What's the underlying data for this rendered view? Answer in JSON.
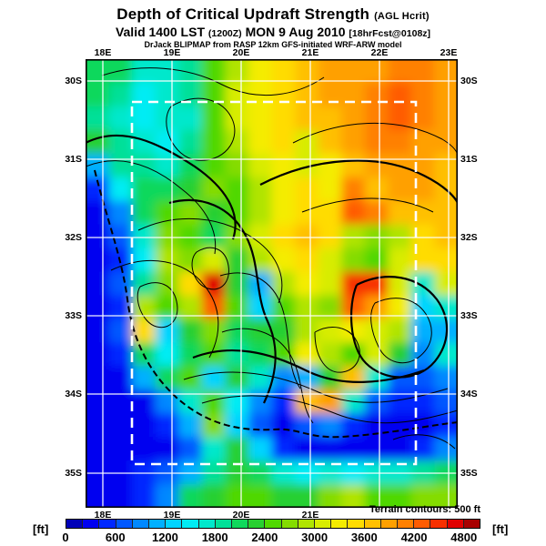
{
  "title": {
    "main": "Depth of Critical Updraft Strength",
    "unit_note": "(AGL Hcrit)"
  },
  "subtitle": {
    "valid": "Valid 1400 LST",
    "zulu": "(1200Z)",
    "date": "MON 9 Aug 2010",
    "fcst": "[18hrFcst@0108z]"
  },
  "model_line": "DrJack BLIPMAP from RASP 12km GFS-initiated WRF-ARW model",
  "axes": {
    "top": [
      "18E",
      "19E",
      "20E",
      "21E",
      "22E",
      "23E"
    ],
    "bottom": [
      "18E",
      "19E",
      "20E",
      "21E"
    ],
    "left": [
      "30S",
      "31S",
      "32S",
      "33S",
      "34S",
      "35S"
    ],
    "right": [
      "30S",
      "31S",
      "32S",
      "33S",
      "34S",
      "35S"
    ]
  },
  "terrain_note": "Terrain contours: 500 ft",
  "colorbar": {
    "unit_left": "[ft]",
    "unit_right": "[ft]",
    "ticks": [
      "0",
      "600",
      "1200",
      "1800",
      "2400",
      "3000",
      "3600",
      "4200",
      "4800"
    ],
    "cell_step_ft": 200,
    "colors": [
      "#0000b8",
      "#0000f0",
      "#0028ff",
      "#0058ff",
      "#0088ff",
      "#00b0ff",
      "#00d4ff",
      "#00ecf4",
      "#00e8cc",
      "#00e098",
      "#10d85c",
      "#28d030",
      "#50d800",
      "#84dc00",
      "#b0e400",
      "#d8ec00",
      "#f4ec00",
      "#ffdc00",
      "#ffc000",
      "#ffa000",
      "#ff8000",
      "#ff5c00",
      "#f83000",
      "#e00000",
      "#a80000"
    ]
  },
  "chart_data": {
    "type": "heatmap",
    "rendering": "filled contour map with terrain contour overlay",
    "title": "Depth of Critical Updraft Strength (AGL Hcrit)",
    "units": "ft",
    "scale_min": 0,
    "scale_max": 4800,
    "scale_tick_step": 600,
    "lon_ticks": [
      "18E",
      "19E",
      "20E",
      "21E",
      "22E",
      "23E"
    ],
    "lat_ticks": [
      "30S",
      "31S",
      "32S",
      "33S",
      "34S",
      "35S"
    ],
    "terrain_contour_interval_ft": 500,
    "overlays": [
      "white lat/lon graticule",
      "white dashed inner nested-domain box",
      "dashed coastline",
      "black terrain contours"
    ],
    "grid_note": "approximate field values in ft, 19 rows (N to S, 30S-35S) x 16 cols (W to E, 18E-23E)",
    "grid": [
      [
        2000,
        2000,
        1600,
        1700,
        1800,
        2400,
        2800,
        3200,
        3400,
        3600,
        3800,
        3800,
        3800,
        4000,
        4000,
        3800
      ],
      [
        2000,
        1800,
        1500,
        1700,
        1800,
        2400,
        3000,
        3200,
        3400,
        3600,
        3800,
        3800,
        4000,
        4200,
        4000,
        3800
      ],
      [
        1800,
        1600,
        1500,
        1700,
        1600,
        2400,
        3000,
        3200,
        3400,
        3600,
        3600,
        3800,
        4000,
        4200,
        4000,
        3800
      ],
      [
        2200,
        1800,
        1700,
        1500,
        1800,
        2400,
        2800,
        3200,
        3400,
        3000,
        3600,
        3800,
        4000,
        4000,
        3800,
        3800
      ],
      [
        1000,
        1800,
        1800,
        1600,
        2000,
        2400,
        2600,
        3000,
        3200,
        3000,
        3200,
        3600,
        3800,
        3800,
        3800,
        3600
      ],
      [
        400,
        1400,
        2000,
        2000,
        2200,
        2600,
        2400,
        2800,
        3200,
        3400,
        3200,
        4000,
        3600,
        3800,
        3800,
        3600
      ],
      [
        200,
        800,
        2000,
        2400,
        2600,
        2200,
        2400,
        2800,
        3200,
        3400,
        3400,
        4200,
        4000,
        3600,
        3600,
        3600
      ],
      [
        200,
        600,
        1600,
        2600,
        2400,
        2000,
        2600,
        3000,
        3400,
        3600,
        3400,
        2800,
        2600,
        2800,
        3400,
        3600
      ],
      [
        200,
        400,
        1400,
        2800,
        2600,
        3000,
        2200,
        2800,
        3200,
        3400,
        3000,
        2600,
        2400,
        3000,
        3400,
        3400
      ],
      [
        200,
        600,
        1800,
        2600,
        3400,
        4600,
        2200,
        1000,
        2800,
        3200,
        3000,
        4400,
        4400,
        3000,
        1600,
        3000
      ],
      [
        200,
        400,
        2800,
        2400,
        2800,
        4200,
        2400,
        1200,
        2400,
        2800,
        2600,
        4200,
        3800,
        3200,
        1200,
        1600
      ],
      [
        200,
        600,
        3400,
        1200,
        2200,
        2600,
        2000,
        2200,
        2200,
        2800,
        3000,
        3200,
        3000,
        2800,
        1000,
        1000
      ],
      [
        200,
        400,
        2000,
        1400,
        2000,
        2400,
        1800,
        2000,
        2400,
        3200,
        2800,
        2400,
        3000,
        2200,
        800,
        1600
      ],
      [
        200,
        200,
        1000,
        2000,
        2400,
        1200,
        2200,
        1600,
        800,
        1000,
        2200,
        3600,
        1600,
        600,
        600,
        800
      ],
      [
        200,
        200,
        200,
        800,
        1600,
        2400,
        1400,
        800,
        400,
        3600,
        3800,
        1600,
        600,
        400,
        400,
        600
      ],
      [
        200,
        200,
        200,
        400,
        1000,
        2600,
        1200,
        600,
        200,
        600,
        800,
        400,
        200,
        200,
        200,
        400
      ],
      [
        200,
        200,
        200,
        200,
        600,
        1600,
        2200,
        1200,
        400,
        200,
        200,
        200,
        200,
        200,
        400,
        800
      ],
      [
        300,
        300,
        400,
        600,
        1000,
        1800,
        2200,
        2000,
        1600,
        1400,
        1600,
        1400,
        1600,
        1600,
        1800,
        2000
      ],
      [
        300,
        300,
        400,
        800,
        2000,
        2200,
        2400,
        2400,
        2200,
        2200,
        2600,
        2800,
        2400,
        2400,
        2600,
        2600
      ]
    ]
  }
}
